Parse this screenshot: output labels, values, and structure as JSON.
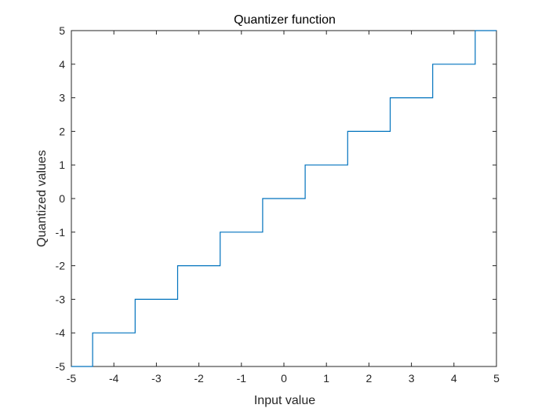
{
  "chart_data": {
    "type": "line",
    "title": "Quantizer function",
    "xlabel": "Input value",
    "ylabel": "Quantized values",
    "xlim": [
      -5,
      5
    ],
    "ylim": [
      -5,
      5
    ],
    "xticks": [
      -5,
      -4,
      -3,
      -2,
      -1,
      0,
      1,
      2,
      3,
      4,
      5
    ],
    "yticks": [
      -5,
      -4,
      -3,
      -2,
      -1,
      0,
      1,
      2,
      3,
      4,
      5
    ],
    "xtick_labels": [
      "-5",
      "-4",
      "-3",
      "-2",
      "-1",
      "0",
      "1",
      "2",
      "3",
      "4",
      "5"
    ],
    "ytick_labels": [
      "-5",
      "-4",
      "-3",
      "-2",
      "-1",
      "0",
      "1",
      "2",
      "3",
      "4",
      "5"
    ],
    "grid": false,
    "box": true,
    "series": [
      {
        "color": "#0072BD",
        "style": "step",
        "x": [
          -5,
          -4.5,
          -4.5,
          -3.5,
          -3.5,
          -2.5,
          -2.5,
          -1.5,
          -1.5,
          -0.5,
          -0.5,
          0.5,
          0.5,
          1.5,
          1.5,
          2.5,
          2.5,
          3.5,
          3.5,
          4.5,
          4.5,
          5
        ],
        "y": [
          -5,
          -5,
          -4,
          -4,
          -3,
          -3,
          -2,
          -2,
          -1,
          -1,
          0,
          0,
          1,
          1,
          2,
          2,
          3,
          3,
          4,
          4,
          5,
          5
        ]
      }
    ]
  }
}
